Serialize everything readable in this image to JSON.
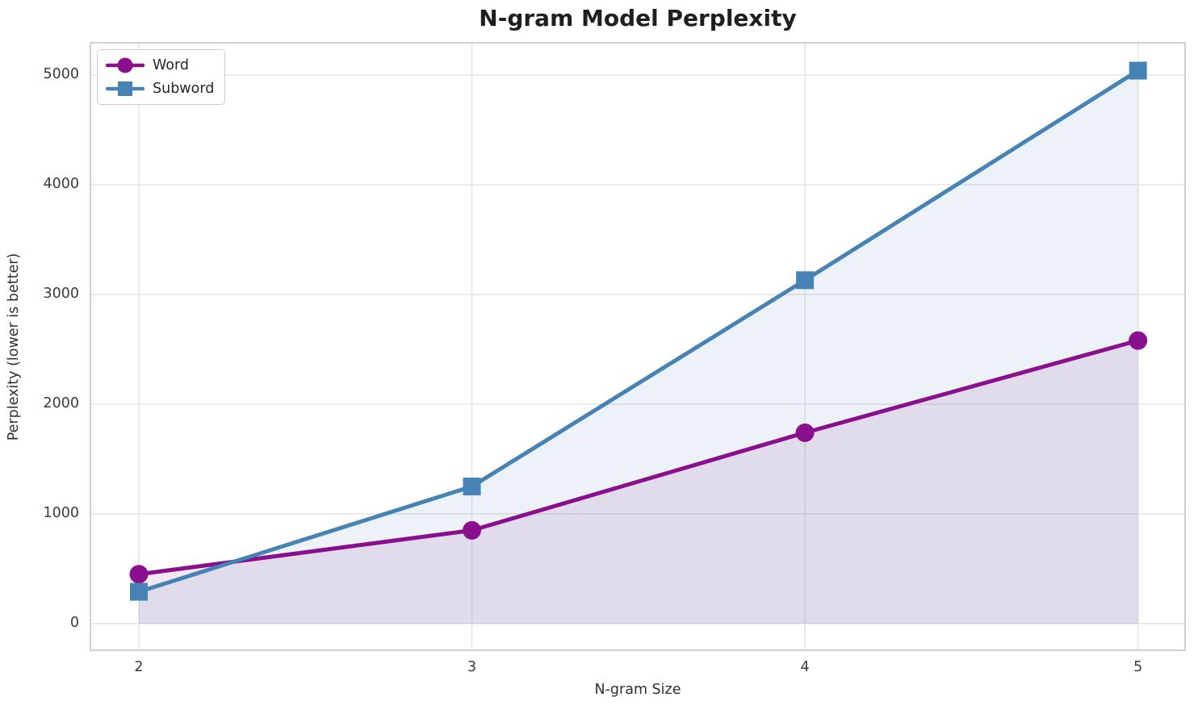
{
  "title": "N-gram Model Perplexity",
  "legend": {
    "position": "upper left",
    "items": [
      {
        "label": "Word",
        "marker": "circle",
        "color": "#8A0F8D"
      },
      {
        "label": "Subword",
        "marker": "square",
        "color": "#4682B4"
      }
    ]
  },
  "colors": {
    "word_line": "#8A0F8D",
    "subword_line": "#4682B4",
    "gridline": "#E8E8E8",
    "spine": "#CBCBCB",
    "title_text": "#1f1f1f",
    "tick_text": "#3a3a3a"
  },
  "chart_data": {
    "type": "line",
    "title": "N-gram Model Perplexity",
    "xlabel": "N-gram Size",
    "ylabel": "Perplexity (lower is better)",
    "x": [
      2,
      3,
      4,
      5
    ],
    "series": [
      {
        "name": "Word",
        "marker": "circle",
        "color": "#8A0F8D",
        "fill_opacity": 0.1,
        "values": [
          450,
          850,
          1740,
          2580
        ]
      },
      {
        "name": "Subword",
        "marker": "square",
        "color": "#4682B4",
        "fill_opacity": 0.1,
        "values": [
          290,
          1250,
          3130,
          5040
        ]
      }
    ],
    "xticks": [
      2,
      3,
      4,
      5
    ],
    "yticks": [
      0,
      1000,
      2000,
      3000,
      4000,
      5000
    ],
    "xlim": [
      1.8546,
      5.1414
    ],
    "ylim": [
      -243,
      5294
    ],
    "grid": true,
    "area_fill_to_zero": true,
    "legend_position": "upper left"
  }
}
